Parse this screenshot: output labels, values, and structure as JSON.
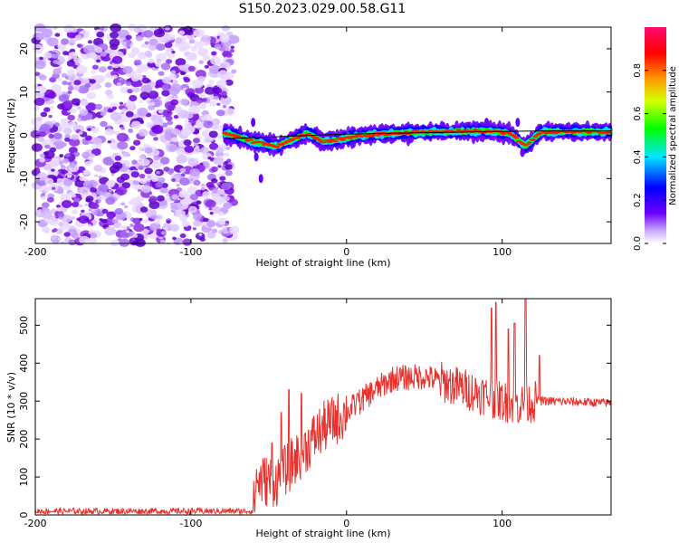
{
  "title": "S150.2023.029.00.58.G11",
  "colors": {
    "snr_line": "#e8302c",
    "center_line": "#000000",
    "noise_purple": "#7b00e0"
  },
  "chart_data": [
    {
      "type": "heatmap",
      "xlabel": "Height of straight line (km)",
      "ylabel": "Frequency (Hz)",
      "xlim": [
        -200,
        170
      ],
      "ylim": [
        -25,
        25
      ],
      "xticks": [
        -200,
        -100,
        0,
        100
      ],
      "yticks": [
        -20,
        -10,
        0,
        10,
        20
      ],
      "colorbar": {
        "label": "Normalized spectral amplitude",
        "ticks": [
          "0.0",
          "0.2",
          "0.4",
          "0.6",
          "0.8"
        ],
        "range": [
          0,
          1
        ]
      },
      "noise_region_x": [
        -200,
        -72
      ],
      "signal_track": [
        {
          "x": -78,
          "f": 0.5
        },
        {
          "x": -60,
          "f": -1.5
        },
        {
          "x": -45,
          "f": -2.5
        },
        {
          "x": -35,
          "f": -1.0
        },
        {
          "x": -25,
          "f": 0.5
        },
        {
          "x": -15,
          "f": -1.5
        },
        {
          "x": -5,
          "f": -1.0
        },
        {
          "x": 10,
          "f": 0.0
        },
        {
          "x": 30,
          "f": 0.5
        },
        {
          "x": 60,
          "f": 0.8
        },
        {
          "x": 90,
          "f": 1.0
        },
        {
          "x": 105,
          "f": 0.5
        },
        {
          "x": 115,
          "f": -2.5
        },
        {
          "x": 125,
          "f": 0.8
        },
        {
          "x": 170,
          "f": 0.8
        }
      ],
      "reference_line": [
        {
          "x": -78,
          "f": -0.8
        },
        {
          "x": 0,
          "f": 0.3
        },
        {
          "x": 120,
          "f": 1.0
        },
        {
          "x": 170,
          "f": 1.0
        }
      ]
    },
    {
      "type": "line",
      "xlabel": "Height of straight line (km)",
      "ylabel": "SNR (10 * v/v)",
      "xlim": [
        -200,
        170
      ],
      "ylim": [
        0,
        570
      ],
      "xticks": [
        -200,
        -100,
        0,
        100
      ],
      "yticks": [
        0,
        100,
        200,
        300,
        400,
        500
      ],
      "series": [
        {
          "values_trend": [
            [
              -200,
              10
            ],
            [
              -150,
              10
            ],
            [
              -100,
              10
            ],
            [
              -60,
              10
            ],
            [
              -58,
              90
            ],
            [
              -45,
              90
            ],
            [
              -30,
              160
            ],
            [
              -15,
              230
            ],
            [
              0,
              270
            ],
            [
              15,
              320
            ],
            [
              30,
              360
            ],
            [
              50,
              365
            ],
            [
              70,
              340
            ],
            [
              90,
              315
            ],
            [
              100,
              300
            ],
            [
              110,
              290
            ],
            [
              122,
              300
            ],
            [
              130,
              300
            ],
            [
              170,
              295
            ]
          ],
          "spikes": [
            [
              -48,
              190
            ],
            [
              -42,
              270
            ],
            [
              -37,
              330
            ],
            [
              -29,
              320
            ],
            [
              7,
              320
            ],
            [
              93,
              545
            ],
            [
              96,
              560
            ],
            [
              104,
              490
            ],
            [
              108,
              505
            ],
            [
              115,
              570
            ],
            [
              124,
              420
            ]
          ]
        }
      ]
    }
  ]
}
